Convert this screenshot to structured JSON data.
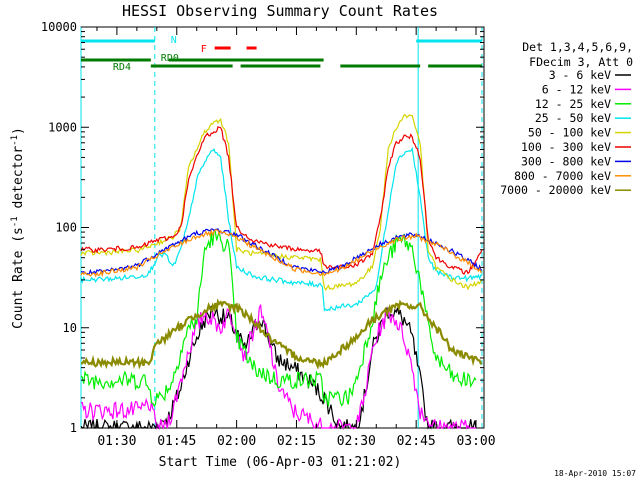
{
  "chart_data": {
    "type": "line",
    "title": "HESSI Observing Summary Count Rates",
    "xlabel": "Start Time (06-Apr-03 01:21:02)",
    "ylabel": "Count Rate (s",
    "ylabel_sup": "-1",
    "ylabel_tail": " detector",
    "ylabel_end": ")",
    "yscale": "log",
    "ylim": [
      1,
      10000
    ],
    "xlim_minutes": [
      81,
      182
    ],
    "x_tick_labels": [
      "01:30",
      "01:45",
      "02:00",
      "02:15",
      "02:30",
      "02:45",
      "03:00"
    ],
    "x_tick_minutes": [
      90,
      105,
      120,
      135,
      150,
      165,
      180
    ],
    "y_tick_labels": [
      "1",
      "10",
      "100",
      "1000",
      "10000"
    ],
    "y_tick_values": [
      1,
      10,
      100,
      1000,
      10000
    ],
    "timestamp": "18-Apr-2010 15:07",
    "legend": {
      "header1": "Det 1,3,4,5,6,9,",
      "header2": "FDecim 3, Att 0",
      "placement": "right"
    },
    "flags": {
      "N_label": "N",
      "N_color": "#00e5ee",
      "N_segments": [
        [
          81,
          99.5
        ],
        [
          165,
          181.5
        ]
      ],
      "F_label": "F",
      "F_color": "#ff0000",
      "F_segments": [
        [
          114.5,
          118.5
        ],
        [
          122.5,
          125
        ]
      ],
      "RD0_label": "RD0",
      "RD4_label": "RD4",
      "RD_color": "#007a00",
      "RD0_segments": [
        [
          81,
          98.5
        ],
        [
          103,
          141.8
        ]
      ],
      "RD4_segments": [
        [
          98.5,
          119
        ],
        [
          121,
          141
        ],
        [
          146,
          166
        ],
        [
          168,
          181.5
        ]
      ],
      "vlines_dashed": [
        99.5,
        181.5
      ],
      "vlines_solid": [
        81,
        165.5
      ]
    },
    "series": [
      {
        "name": "3 - 6 keV",
        "color": "#000000",
        "x": [
          81,
          95,
          99,
          103,
          106,
          108,
          110,
          112,
          114,
          116,
          118,
          120,
          122,
          124,
          126,
          128,
          130,
          134,
          138,
          142,
          146,
          150,
          152,
          154,
          156,
          158,
          160,
          162,
          164,
          166,
          168,
          172,
          176,
          180
        ],
        "y": [
          1,
          1,
          1,
          1.3,
          2.5,
          5,
          8,
          12,
          15,
          13,
          12,
          9,
          6,
          9,
          13,
          8,
          5,
          4,
          3,
          2,
          1,
          1,
          2,
          6,
          10,
          15,
          14,
          12,
          8,
          3,
          1,
          1,
          1,
          1
        ]
      },
      {
        "name": "6 - 12 keV",
        "color": "#ff00ff",
        "x": [
          81,
          96,
          98,
          100,
          102,
          104,
          106,
          108,
          110,
          112,
          114,
          116,
          118,
          120,
          122,
          124,
          126,
          128,
          130,
          134,
          142,
          150,
          152,
          154,
          156,
          158,
          160,
          162,
          164,
          166,
          170,
          180
        ],
        "y": [
          1.5,
          1.5,
          1.8,
          1,
          1,
          1.5,
          3,
          6,
          10,
          14,
          12,
          10,
          14,
          10,
          5,
          9,
          14,
          8,
          3,
          1.5,
          1,
          1,
          2,
          6,
          10,
          14,
          12,
          8,
          4,
          1.5,
          1,
          1
        ]
      },
      {
        "name": "12 - 25 keV",
        "color": "#00ee00",
        "x": [
          81,
          90,
          97,
          99,
          101,
          104,
          106,
          108,
          110,
          112,
          114,
          116,
          118,
          120,
          124,
          130,
          136,
          141,
          142,
          148,
          150,
          152,
          154,
          156,
          158,
          160,
          162,
          164,
          166,
          168,
          170,
          175,
          180
        ],
        "y": [
          3,
          3,
          3,
          2,
          2,
          3,
          6,
          10,
          12,
          60,
          80,
          75,
          65,
          8,
          4,
          3,
          3,
          3,
          2,
          2,
          3,
          6,
          12,
          30,
          50,
          70,
          75,
          60,
          30,
          10,
          5,
          3,
          3
        ]
      },
      {
        "name": "25 - 50 keV",
        "color": "#00e5ee",
        "x": [
          81,
          90,
          96,
          98,
          99.5,
          100,
          102,
          104,
          106,
          108,
          110,
          112,
          114,
          116,
          118,
          120,
          125,
          130,
          135,
          140,
          141.5,
          142,
          145,
          150,
          155,
          158,
          160,
          162,
          164,
          166,
          168,
          170,
          174,
          178,
          180,
          181.5
        ],
        "y": [
          30,
          31,
          33,
          35,
          45,
          50,
          55,
          40,
          60,
          120,
          300,
          450,
          600,
          500,
          120,
          40,
          32,
          30,
          28,
          27,
          27,
          15,
          16,
          17,
          25,
          150,
          450,
          560,
          600,
          200,
          50,
          36,
          32,
          31,
          32,
          33
        ]
      },
      {
        "name": "50 - 100 keV",
        "color": "#d4d400",
        "x": [
          81,
          86,
          92,
          96,
          98,
          100,
          104,
          106,
          108,
          110,
          112,
          114,
          116,
          118,
          120,
          124,
          130,
          136,
          141,
          142,
          146,
          150,
          154,
          156,
          158,
          160,
          162,
          164,
          166,
          168,
          170,
          174,
          178,
          181.5
        ],
        "y": [
          55,
          56,
          58,
          60,
          65,
          70,
          80,
          100,
          400,
          600,
          900,
          1100,
          1200,
          700,
          60,
          55,
          52,
          50,
          48,
          25,
          26,
          28,
          40,
          100,
          600,
          1000,
          1300,
          1300,
          700,
          60,
          40,
          30,
          25,
          30
        ]
      },
      {
        "name": "100 - 300 keV",
        "color": "#ee0000",
        "x": [
          81,
          86,
          92,
          96,
          98,
          100,
          104,
          106,
          108,
          110,
          112,
          114,
          116,
          118,
          120,
          124,
          130,
          136,
          141,
          142,
          146,
          150,
          154,
          156,
          158,
          160,
          162,
          164,
          166,
          168,
          170,
          174,
          178,
          181.5
        ],
        "y": [
          60,
          60,
          62,
          63,
          70,
          75,
          80,
          100,
          300,
          500,
          800,
          900,
          1000,
          500,
          100,
          75,
          65,
          60,
          58,
          40,
          40,
          42,
          55,
          120,
          400,
          700,
          800,
          800,
          500,
          80,
          50,
          40,
          35,
          60
        ]
      },
      {
        "name": "300 - 800 keV",
        "color": "#0000ee",
        "x": [
          81,
          86,
          90,
          95,
          100,
          105,
          110,
          115,
          120,
          125,
          130,
          135,
          141,
          142,
          146,
          150,
          155,
          160,
          165,
          170,
          175,
          180,
          181.5
        ],
        "y": [
          35,
          36,
          38,
          42,
          55,
          70,
          88,
          95,
          85,
          65,
          50,
          40,
          36,
          36,
          40,
          50,
          65,
          80,
          85,
          70,
          55,
          42,
          38
        ]
      },
      {
        "name": "800 - 7000 keV",
        "color": "#ff8c00",
        "x": [
          81,
          86,
          90,
          95,
          100,
          105,
          110,
          115,
          120,
          125,
          130,
          135,
          141,
          142,
          146,
          150,
          155,
          160,
          165,
          170,
          175,
          180,
          181.5
        ],
        "y": [
          34,
          35,
          37,
          40,
          52,
          66,
          82,
          90,
          80,
          62,
          48,
          38,
          35,
          35,
          38,
          47,
          62,
          76,
          82,
          68,
          52,
          40,
          36
        ]
      },
      {
        "name": "7000 - 20000 keV",
        "color": "#8b8b00",
        "x": [
          81,
          90,
          95,
          98,
          100,
          104,
          108,
          112,
          116,
          120,
          124,
          128,
          132,
          136,
          140,
          142,
          146,
          150,
          154,
          158,
          162,
          166,
          170,
          174,
          178,
          181.5
        ],
        "y": [
          4.5,
          4.5,
          4.5,
          4.5,
          7,
          9,
          12,
          15,
          17,
          16,
          12,
          8,
          6,
          5,
          4.5,
          4.5,
          6,
          8,
          12,
          15,
          17,
          16,
          10,
          6,
          5,
          4.5
        ]
      }
    ]
  }
}
